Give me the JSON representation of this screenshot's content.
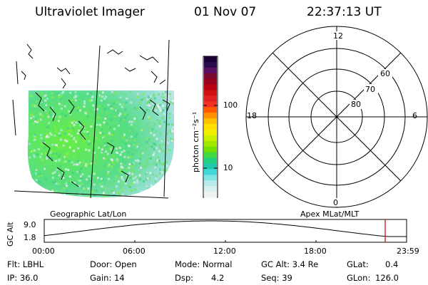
{
  "header": {
    "instrument": "Ultraviolet Imager",
    "date": "01 Nov 07",
    "time": "22:37:13 UT"
  },
  "panels": {
    "map_label": "Geographic Lat/Lon",
    "polar_label": "Apex MLat/MLT"
  },
  "colorbar": {
    "unit_label": "photon cm⁻²s⁻¹",
    "tick_100": "100",
    "tick_10": "10",
    "scale": "log"
  },
  "polar": {
    "mlt_top": "12",
    "mlt_left": "18",
    "mlt_right": "6",
    "mlt_bottom": "0",
    "lat_60": "60",
    "lat_70": "70",
    "lat_80": "80"
  },
  "altitude_plot": {
    "ylabel": "GC Alt",
    "y_max": "9.0",
    "y_min": "1.8",
    "x_ticks": [
      "00:00",
      "06:00",
      "12:00",
      "18:00",
      "23:59"
    ],
    "marker_color": "#cc0000"
  },
  "footer": {
    "flt": "Flt: LBHL",
    "door": "Door: Open",
    "mode": "Mode: Normal",
    "gc_alt": "GC Alt: 3.4 Re",
    "glat_label": "GLat:",
    "glat_value": "0.4",
    "ip": "IP: 36.0",
    "gain": "Gain: 14",
    "dsp_label": "Dsp:",
    "dsp_value": "4.2",
    "seq": "Seq: 39",
    "glon_label": "GLon:",
    "glon_value": "126.0"
  }
}
